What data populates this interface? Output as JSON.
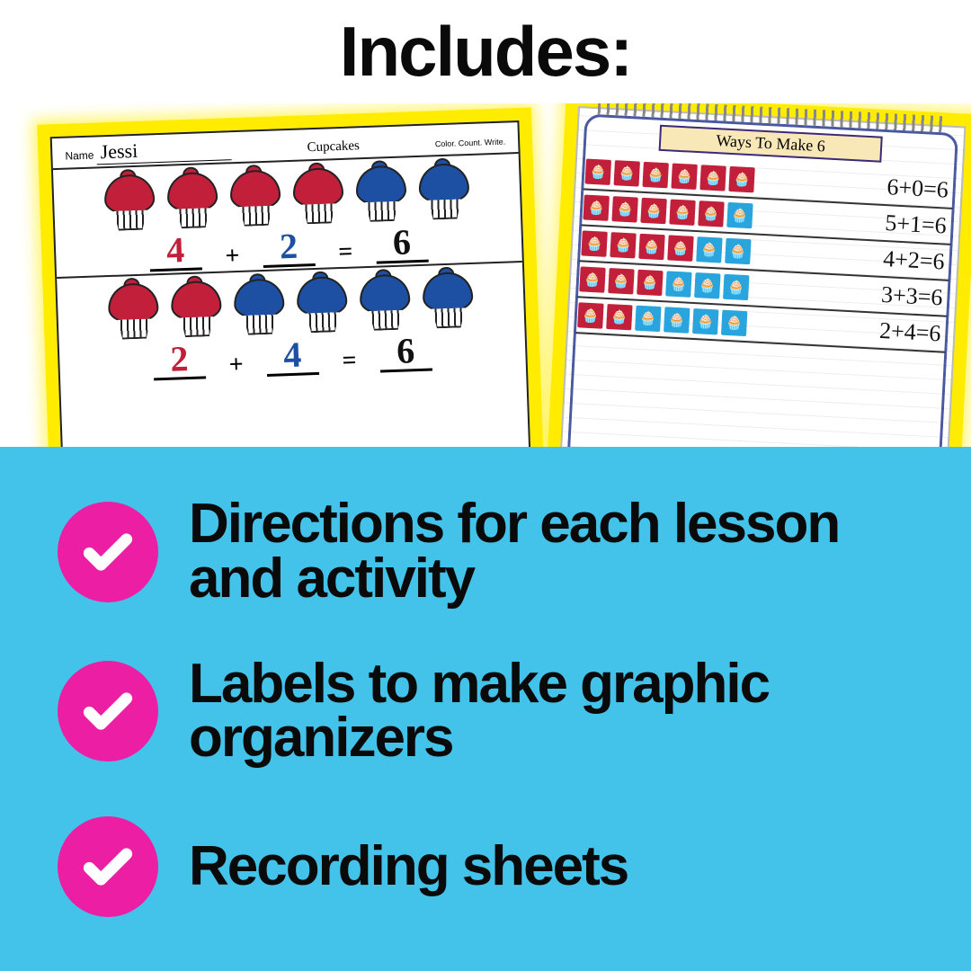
{
  "colors": {
    "background": "#ffffff",
    "title_text": "#0a0a0a",
    "highlight_yellow": "#ffec00",
    "panel_blue": "#44c3ea",
    "bullet_pink": "#ec1ea4",
    "check_white": "#ffffff",
    "cup_red": "#c21f3a",
    "cup_blue": "#1d4fa3",
    "tile_red": "#c21f3a",
    "tile_blue": "#2aa4dd",
    "chart_border_navy": "#2a3c8f"
  },
  "title": "Includes:",
  "title_fontsize": 78,
  "worksheet": {
    "name_label": "Name",
    "student_name": "Jessi",
    "sheet_title": "Cupcakes",
    "subheading": "Color. Count. Write.",
    "rows": [
      {
        "cupcakes": [
          "red",
          "red",
          "red",
          "red",
          "blue",
          "blue"
        ],
        "equation": {
          "a": "4",
          "a_color": "#c21f3a",
          "op1": "+",
          "b": "2",
          "b_color": "#1d4fa3",
          "op2": "=",
          "c": "6",
          "c_color": "#111111"
        }
      },
      {
        "cupcakes": [
          "red",
          "red",
          "blue",
          "blue",
          "blue",
          "blue"
        ],
        "equation": {
          "a": "2",
          "a_color": "#c21f3a",
          "op1": "+",
          "b": "4",
          "b_color": "#1d4fa3",
          "op2": "=",
          "c": "6",
          "c_color": "#111111"
        }
      }
    ]
  },
  "chart": {
    "title": "Ways To Make 6",
    "rows": [
      {
        "red": 6,
        "blue": 0,
        "eq": "6+0=6"
      },
      {
        "red": 5,
        "blue": 1,
        "eq": "5+1=6"
      },
      {
        "red": 4,
        "blue": 2,
        "eq": "4+2=6"
      },
      {
        "red": 3,
        "blue": 3,
        "eq": "3+3=6"
      },
      {
        "red": 2,
        "blue": 4,
        "eq": "2+4=6"
      }
    ]
  },
  "bullets": [
    "Directions for each lesson and activity",
    "Labels to make graphic organizers",
    "Recording sheets"
  ],
  "bullet_fontsize": 62,
  "check_icon": "check-icon"
}
